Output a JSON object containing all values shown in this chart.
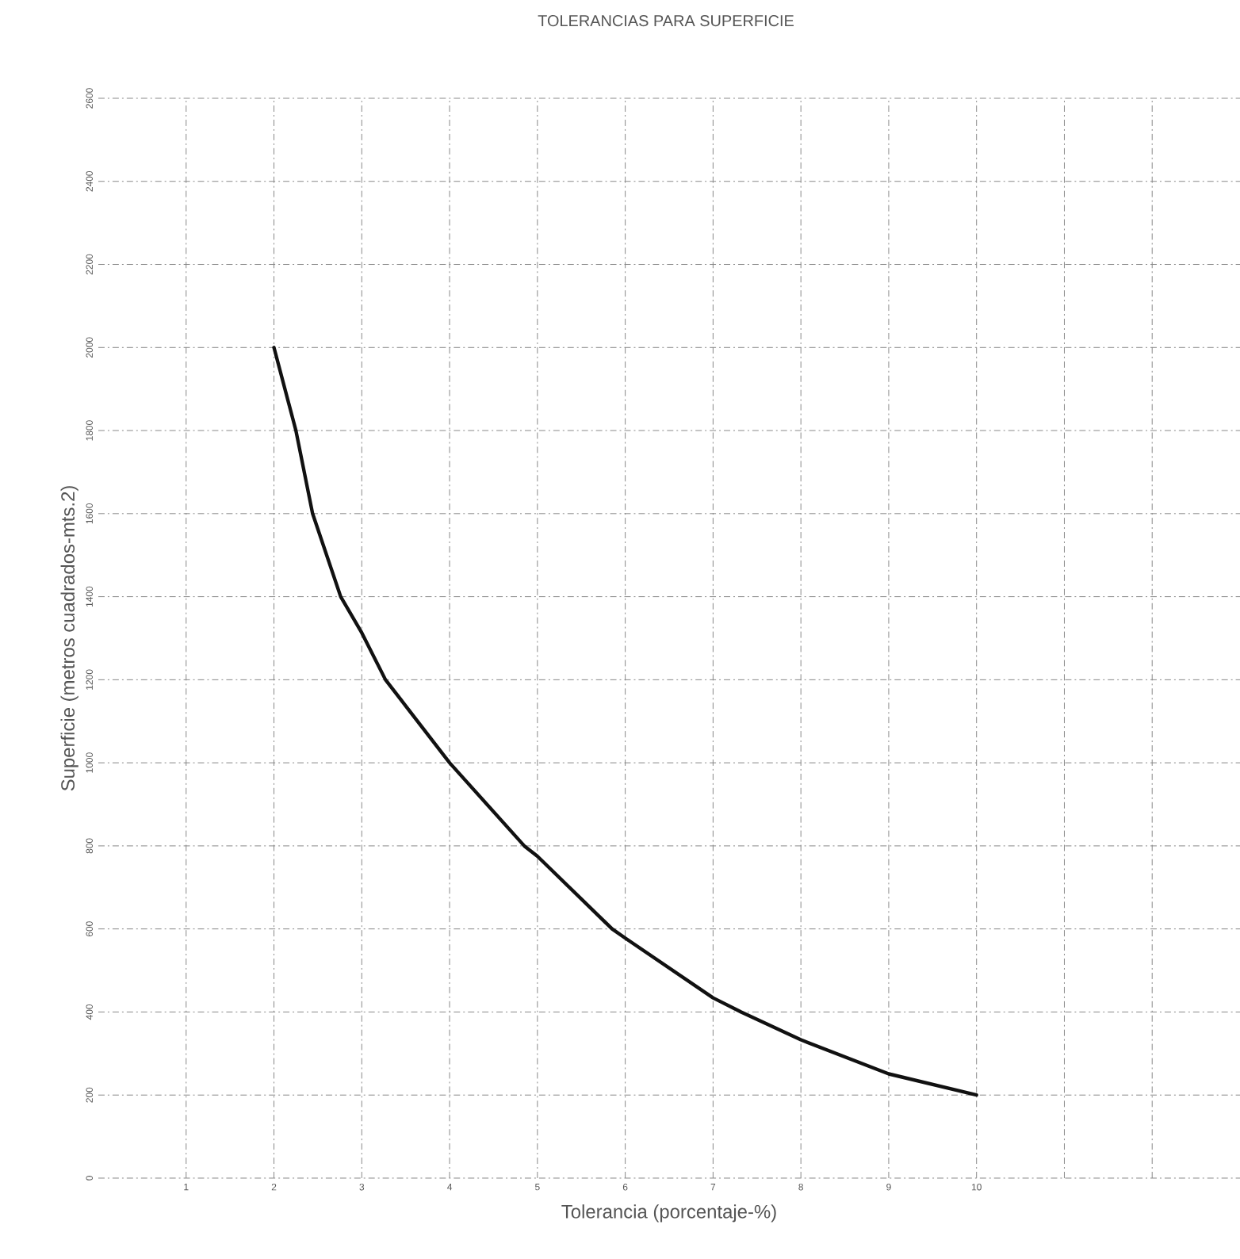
{
  "chart_data": {
    "type": "line",
    "title": "TOLERANCIAS PARA SUPERFICIE",
    "xlabel": "Tolerancia (porcentaje-%)",
    "ylabel": "Superficie (metros cuadrados-mts.2)",
    "x": [
      2,
      2.25,
      2.44,
      2.76,
      3,
      3.27,
      4,
      4.85,
      5,
      5.85,
      6,
      7,
      7.32,
      8,
      9,
      10
    ],
    "series": [
      {
        "color": "#111111",
        "values": [
          2000,
          1800,
          1600,
          1400,
          1313,
          1200,
          1000,
          800,
          775,
          600,
          578,
          434,
          400,
          333,
          251,
          200
        ]
      }
    ],
    "xlim": [
      0,
      13
    ],
    "ylim": [
      0,
      2600
    ],
    "xticks": [
      1,
      2,
      3,
      4,
      5,
      6,
      7,
      8,
      9,
      10,
      {
        "value": 11,
        "label": null
      },
      {
        "value": 12,
        "label": null
      }
    ],
    "yticks": [
      0,
      200,
      400,
      600,
      800,
      1000,
      1200,
      1400,
      1600,
      1800,
      2000,
      2200,
      2400,
      2600
    ],
    "grid": true,
    "marker": "none",
    "line_style": "solid"
  }
}
